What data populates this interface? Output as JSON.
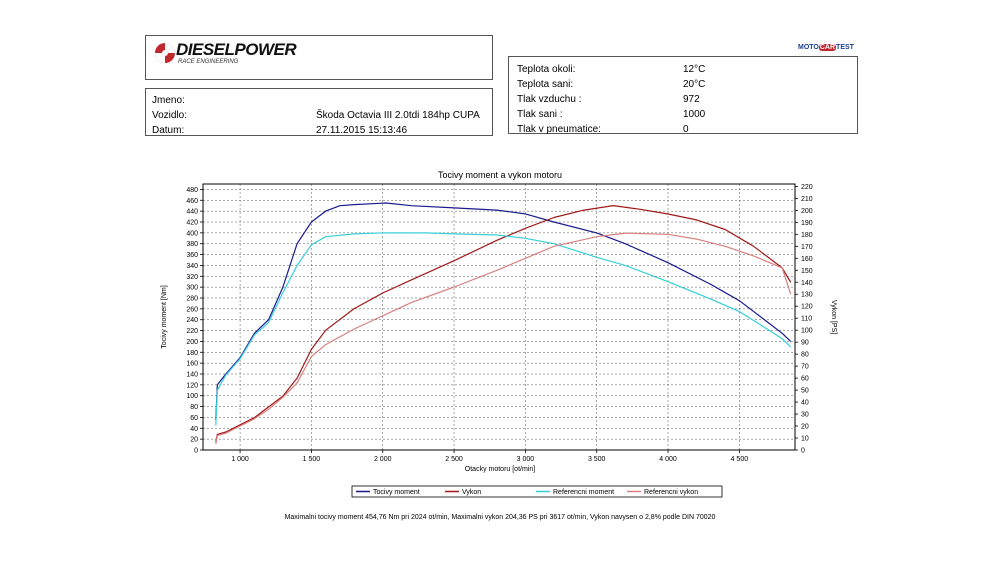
{
  "header": {
    "brand_name": "DIESELPOWER",
    "brand_sub": "RACE ENGINEERING",
    "partner_logo_parts": [
      "MOTO",
      "CAR",
      "TEST"
    ]
  },
  "vehicle": {
    "name_label": "Jmeno:",
    "name_value": "",
    "car_label": "Vozidlo:",
    "car_value": "Škoda Octavia III 2.0tdi 184hp CUPA",
    "date_label": "Datum:",
    "date_value": "27.11.2015 15:13:46"
  },
  "conditions": [
    {
      "label": "Teplota okoli:",
      "value": "12°C"
    },
    {
      "label": "Teplota sani:",
      "value": "20°C"
    },
    {
      "label": "Tlak vzduchu :",
      "value": "972"
    },
    {
      "label": "Tlak sani :",
      "value": "1000"
    },
    {
      "label": "Tlak v pneumatice:",
      "value": "0"
    }
  ],
  "footer": "Maximalni tocivy moment 454,76 Nm pri 2024 ot/min,  Maximalni vykon 204,36 PS pri 3617 ot/min,  Vykon navysen o 2,8% podle DIN 70020",
  "colors": {
    "torque": "#1a1a8c",
    "power": "#a01818",
    "ref_torque": "#35d0d8",
    "ref_power": "#d88080"
  },
  "chart_data": {
    "type": "line",
    "title": "Tocivy moment a vykon motoru",
    "xlabel": "Otacky motoru [ot/min]",
    "ylabel": "Tocivy moment [Nm]",
    "ylabel_right": "Vykon [PS]",
    "xlim": [
      740,
      4890
    ],
    "ylim": [
      0,
      490
    ],
    "ylim_right": [
      0,
      222
    ],
    "x_ticks": [
      1000,
      1500,
      2000,
      2500,
      3000,
      3500,
      4000,
      4500
    ],
    "x_tick_labels": [
      "1 000",
      "1 500",
      "2 000",
      "2 500",
      "3 000",
      "3 500",
      "4 000",
      "4 500"
    ],
    "y_ticks": [
      0,
      20,
      40,
      60,
      80,
      100,
      120,
      140,
      160,
      180,
      200,
      220,
      240,
      260,
      280,
      300,
      320,
      340,
      360,
      380,
      400,
      420,
      440,
      460,
      480
    ],
    "y_ticks_right": [
      0,
      10,
      20,
      30,
      40,
      50,
      60,
      70,
      80,
      90,
      100,
      110,
      120,
      130,
      140,
      150,
      160,
      170,
      180,
      190,
      200,
      210,
      220
    ],
    "grid": true,
    "legend_position": "bottom",
    "series": [
      {
        "name": "Tocivy moment",
        "axis": "left",
        "color": "#1a1a8c",
        "points": [
          [
            830,
            55
          ],
          [
            840,
            120
          ],
          [
            900,
            140
          ],
          [
            1000,
            170
          ],
          [
            1100,
            215
          ],
          [
            1200,
            240
          ],
          [
            1300,
            300
          ],
          [
            1400,
            380
          ],
          [
            1500,
            420
          ],
          [
            1600,
            440
          ],
          [
            1700,
            450
          ],
          [
            1800,
            452
          ],
          [
            2024,
            455
          ],
          [
            2200,
            450
          ],
          [
            2500,
            446
          ],
          [
            2800,
            442
          ],
          [
            3000,
            435
          ],
          [
            3200,
            420
          ],
          [
            3500,
            400
          ],
          [
            3700,
            380
          ],
          [
            4000,
            345
          ],
          [
            4300,
            305
          ],
          [
            4500,
            275
          ],
          [
            4700,
            235
          ],
          [
            4800,
            215
          ],
          [
            4860,
            200
          ]
        ]
      },
      {
        "name": "Vykon",
        "axis": "right",
        "color": "#a01818",
        "points": [
          [
            830,
            7
          ],
          [
            840,
            13
          ],
          [
            900,
            15
          ],
          [
            1000,
            21
          ],
          [
            1100,
            27
          ],
          [
            1200,
            36
          ],
          [
            1300,
            45
          ],
          [
            1400,
            60
          ],
          [
            1500,
            84
          ],
          [
            1600,
            100
          ],
          [
            1800,
            118
          ],
          [
            2000,
            131
          ],
          [
            2200,
            142
          ],
          [
            2500,
            158
          ],
          [
            2800,
            175
          ],
          [
            3000,
            185
          ],
          [
            3200,
            194
          ],
          [
            3400,
            200
          ],
          [
            3617,
            204
          ],
          [
            3800,
            201
          ],
          [
            4000,
            197
          ],
          [
            4200,
            192
          ],
          [
            4400,
            184
          ],
          [
            4600,
            170
          ],
          [
            4800,
            152
          ],
          [
            4860,
            140
          ]
        ]
      },
      {
        "name": "Referencni moment",
        "axis": "left",
        "color": "#35d0d8",
        "points": [
          [
            830,
            45
          ],
          [
            840,
            110
          ],
          [
            900,
            138
          ],
          [
            1000,
            168
          ],
          [
            1100,
            212
          ],
          [
            1200,
            235
          ],
          [
            1300,
            290
          ],
          [
            1400,
            340
          ],
          [
            1500,
            378
          ],
          [
            1600,
            393
          ],
          [
            1800,
            398
          ],
          [
            2000,
            400
          ],
          [
            2300,
            400
          ],
          [
            2500,
            398
          ],
          [
            2800,
            396
          ],
          [
            3000,
            390
          ],
          [
            3200,
            380
          ],
          [
            3500,
            355
          ],
          [
            3700,
            340
          ],
          [
            4000,
            310
          ],
          [
            4300,
            278
          ],
          [
            4500,
            255
          ],
          [
            4700,
            222
          ],
          [
            4800,
            205
          ],
          [
            4860,
            190
          ]
        ]
      },
      {
        "name": "Referencni vykon",
        "axis": "right",
        "color": "#d88080",
        "points": [
          [
            830,
            5
          ],
          [
            840,
            12
          ],
          [
            900,
            14
          ],
          [
            1000,
            20
          ],
          [
            1100,
            26
          ],
          [
            1200,
            34
          ],
          [
            1300,
            44
          ],
          [
            1400,
            56
          ],
          [
            1500,
            78
          ],
          [
            1600,
            88
          ],
          [
            1800,
            101
          ],
          [
            2000,
            112
          ],
          [
            2200,
            123
          ],
          [
            2500,
            136
          ],
          [
            2800,
            150
          ],
          [
            3000,
            160
          ],
          [
            3200,
            170
          ],
          [
            3500,
            178
          ],
          [
            3700,
            181
          ],
          [
            4000,
            180
          ],
          [
            4200,
            176
          ],
          [
            4400,
            170
          ],
          [
            4600,
            162
          ],
          [
            4800,
            152
          ],
          [
            4860,
            130
          ]
        ]
      }
    ]
  }
}
